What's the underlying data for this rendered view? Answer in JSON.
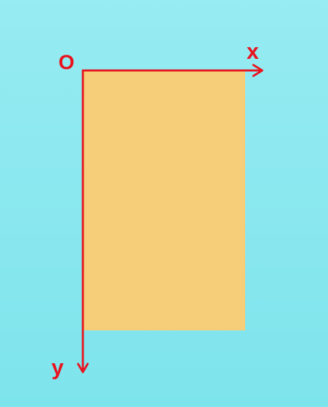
{
  "diagram": {
    "origin_label": "O",
    "x_axis_label": "x",
    "y_axis_label": "y",
    "colors": {
      "background_top": "#97ebf2",
      "background_bottom": "#7ee4ec",
      "rectangle_fill": "#f6cd78",
      "axis": "#e8141e",
      "label": "#e8141e"
    }
  }
}
